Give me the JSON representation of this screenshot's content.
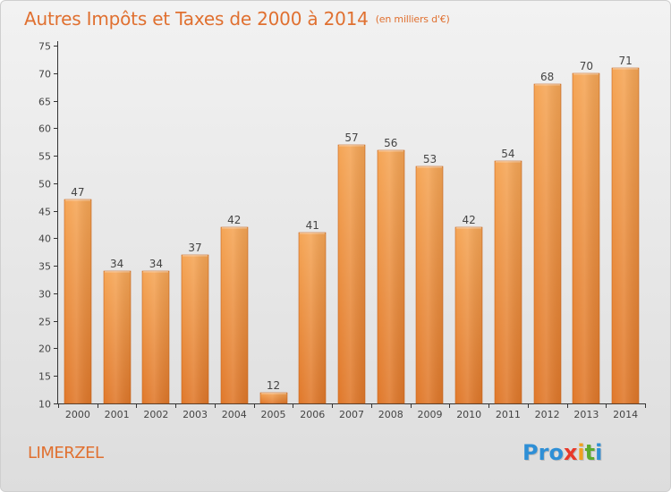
{
  "chart_data": {
    "type": "bar",
    "title": "Autres Impôts et Taxes de 2000 à 2014",
    "subtitle": "(en milliers d'€)",
    "categories": [
      "2000",
      "2001",
      "2002",
      "2003",
      "2004",
      "2005",
      "2006",
      "2007",
      "2008",
      "2009",
      "2010",
      "2011",
      "2012",
      "2013",
      "2014"
    ],
    "values": [
      47,
      34,
      34,
      37,
      42,
      12,
      41,
      57,
      56,
      53,
      42,
      54,
      68,
      70,
      71
    ],
    "data_labels": [
      "47",
      "34",
      "34",
      "37",
      "42",
      "12",
      "41",
      "57",
      "56",
      "53",
      "42",
      "54",
      "68",
      "70",
      "71"
    ],
    "yticks": [
      "10",
      "15",
      "20",
      "25",
      "30",
      "35",
      "40",
      "45",
      "50",
      "55",
      "60",
      "65",
      "70",
      "75"
    ],
    "ylim": [
      10,
      75
    ],
    "xlabel": "",
    "ylabel": "",
    "grid": false,
    "bar_color_top": "#f5a555",
    "bar_color_bottom": "#e0782a"
  },
  "footer": {
    "commune": "LIMERZEL",
    "logo_letters": [
      "P",
      "r",
      "o",
      "x",
      "i",
      "t",
      "i"
    ],
    "logo_colors": [
      "#2e8fd6",
      "#2e8fd6",
      "#2e8fd6",
      "#e8392a",
      "#f0a020",
      "#5cab2e",
      "#2e8fd6"
    ]
  },
  "colors": {
    "accent": "#e07030",
    "text": "#444444"
  }
}
